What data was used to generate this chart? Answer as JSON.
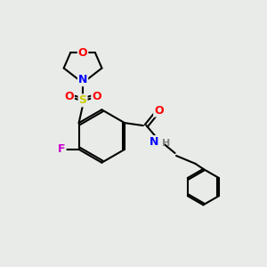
{
  "bg_color": "#e8ebe8",
  "bond_color": "#000000",
  "bond_width": 1.5,
  "atom_colors": {
    "O": "#ff0000",
    "N": "#0000ff",
    "S": "#cccc00",
    "F": "#cc00cc",
    "H": "#808080",
    "C": "#000000"
  },
  "font_size": 9,
  "figsize": [
    3.0,
    3.0
  ],
  "dpi": 100
}
